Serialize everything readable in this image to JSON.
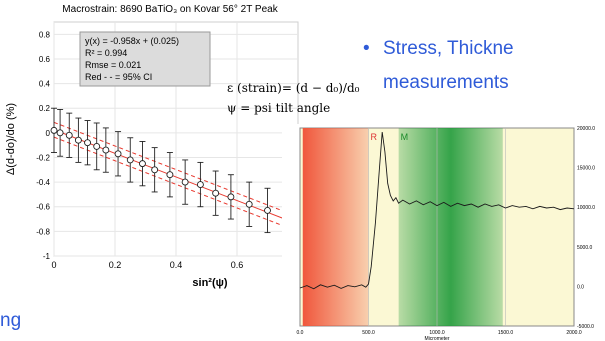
{
  "slide": {
    "bullet_symbol": "•",
    "bullet_line1": "Stress, Thickne",
    "bullet_line2": "measurements",
    "left_fragment": "ng",
    "strain_formula": "ε (strain)= (d − d₀)/d₀",
    "psi_definition": "ψ = psi tilt angle"
  },
  "colors": {
    "bullet_text": "#2f5bd8",
    "fit_line": "#e8392f",
    "ci_line": "#e8392f",
    "band_red": "#f0573c",
    "band_green": "#1f9a3a",
    "trace_bg": "#fbf8d4"
  },
  "chart_data": [
    {
      "type": "scatter",
      "title": "Macrostrain: 8690 BaTiO₃ on Kovar 56° 2T Peak",
      "xlabel": "sin²(ψ)",
      "ylabel": "Δ(d-do)/do (%)",
      "xlim": [
        0,
        0.8
      ],
      "ylim": [
        -1,
        0.9
      ],
      "xticks": [
        "0",
        "0.2",
        "0.4",
        "0.6"
      ],
      "yticks": [
        "-1",
        "-0.8",
        "-0.6",
        "-0.4",
        "-0.2",
        "0",
        "0.2",
        "0.4",
        "0.6",
        "0.8"
      ],
      "grid": true,
      "fit": {
        "slope": -0.958,
        "intercept": 0.025
      },
      "ci_offset": 0.06,
      "legend": {
        "line1": "y(x) = -0.958x + (0.025)",
        "line2": "R² = 0.994",
        "line3": "Rmse = 0.021",
        "line4": "Red - - = 95% CI"
      },
      "points": [
        {
          "x": 0.0,
          "y": 0.02,
          "err": 0.18
        },
        {
          "x": 0.02,
          "y": 0.0,
          "err": 0.19
        },
        {
          "x": 0.05,
          "y": -0.02,
          "err": 0.18
        },
        {
          "x": 0.08,
          "y": -0.06,
          "err": 0.18
        },
        {
          "x": 0.11,
          "y": -0.08,
          "err": 0.18
        },
        {
          "x": 0.14,
          "y": -0.11,
          "err": 0.19
        },
        {
          "x": 0.17,
          "y": -0.14,
          "err": 0.18
        },
        {
          "x": 0.21,
          "y": -0.17,
          "err": 0.18
        },
        {
          "x": 0.25,
          "y": -0.22,
          "err": 0.18
        },
        {
          "x": 0.29,
          "y": -0.25,
          "err": 0.18
        },
        {
          "x": 0.33,
          "y": -0.3,
          "err": 0.18
        },
        {
          "x": 0.38,
          "y": -0.34,
          "err": 0.18
        },
        {
          "x": 0.43,
          "y": -0.4,
          "err": 0.18
        },
        {
          "x": 0.48,
          "y": -0.42,
          "err": 0.18
        },
        {
          "x": 0.53,
          "y": -0.49,
          "err": 0.18
        },
        {
          "x": 0.58,
          "y": -0.52,
          "err": 0.18
        },
        {
          "x": 0.64,
          "y": -0.58,
          "err": 0.18
        },
        {
          "x": 0.7,
          "y": -0.63,
          "err": 0.18
        }
      ]
    },
    {
      "type": "line",
      "xlabel": "Micrometer",
      "xlim": [
        0,
        2000
      ],
      "ylim": [
        -5000,
        20000
      ],
      "xticks": [
        "0.0",
        "500.0",
        "1000.0",
        "1500.0",
        "2000.0"
      ],
      "yticks": [
        "20000.0",
        "15000.0",
        "10000.0",
        "5000.0",
        "0.0",
        "-5000.0"
      ],
      "markers": {
        "r": "R",
        "m": "M"
      },
      "bands": [
        {
          "color": "red",
          "x0": 20,
          "x1": 500
        },
        {
          "color": "green",
          "x0": 720,
          "x1": 1480
        }
      ],
      "series": [
        {
          "x": [
            0,
            50,
            100,
            150,
            200,
            250,
            300,
            350,
            400,
            450,
            480,
            500,
            520,
            550,
            580,
            600,
            620,
            640,
            660,
            680,
            700,
            720,
            750,
            800,
            850,
            900,
            950,
            1000,
            1050,
            1100,
            1150,
            1200,
            1250,
            1300,
            1350,
            1400,
            1450,
            1500,
            1550,
            1600,
            1650,
            1700,
            1750,
            1800,
            1850,
            1900,
            1950,
            2000
          ],
          "y": [
            -200,
            100,
            -300,
            200,
            -100,
            150,
            -250,
            100,
            -50,
            200,
            -100,
            300,
            2500,
            8000,
            15000,
            19500,
            17000,
            13000,
            11500,
            10800,
            11200,
            10500,
            10900,
            10400,
            10800,
            10300,
            10700,
            10200,
            10600,
            10100,
            10500,
            10200,
            10400,
            10000,
            10400,
            10100,
            10300,
            9900,
            10200,
            10000,
            10100,
            9800,
            10100,
            9900,
            10000,
            9700,
            9900,
            9800
          ]
        }
      ]
    }
  ]
}
